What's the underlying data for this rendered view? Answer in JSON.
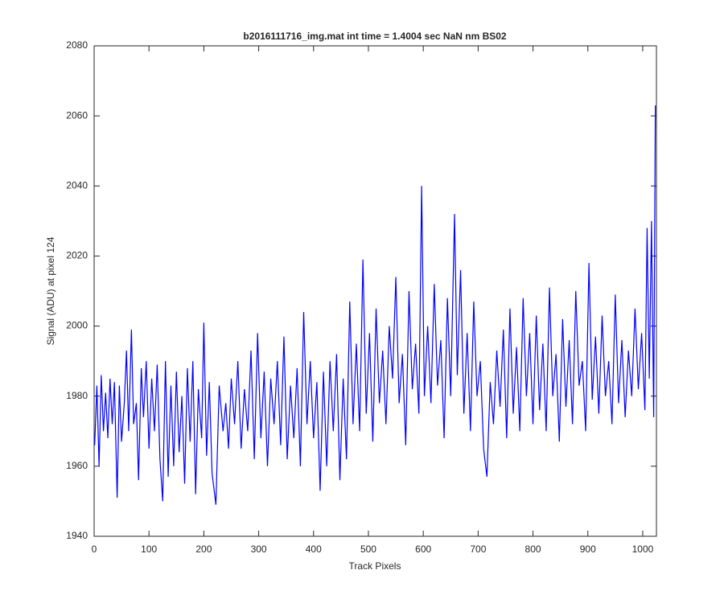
{
  "chart_data": {
    "type": "line",
    "title": "b2016111716_img.mat int time = 1.4004 sec  NaN nm BS02",
    "x_label": "Track Pixels",
    "y_label": "Signal (ADU) at pixel 124",
    "color": "#0000ff",
    "xlim": [
      0,
      1025
    ],
    "xticks": [
      0,
      100,
      200,
      300,
      400,
      500,
      600,
      700,
      800,
      900,
      1000
    ],
    "ylim": [
      1940,
      2080
    ],
    "yticks": [
      1940,
      1960,
      1980,
      2000,
      2020,
      2040,
      2060,
      2080
    ],
    "x": [
      1,
      5,
      9,
      13,
      17,
      21,
      25,
      29,
      33,
      37,
      42,
      46,
      50,
      55,
      59,
      63,
      68,
      72,
      77,
      81,
      86,
      90,
      95,
      100,
      105,
      110,
      115,
      120,
      125,
      130,
      135,
      140,
      145,
      150,
      155,
      160,
      165,
      170,
      175,
      180,
      185,
      190,
      196,
      200,
      205,
      210,
      215,
      222,
      228,
      235,
      240,
      245,
      250,
      256,
      262,
      268,
      274,
      280,
      286,
      292,
      298,
      304,
      310,
      316,
      322,
      328,
      334,
      340,
      346,
      352,
      358,
      364,
      370,
      376,
      382,
      388,
      394,
      400,
      406,
      412,
      418,
      424,
      430,
      436,
      442,
      448,
      454,
      460,
      466,
      472,
      478,
      484,
      490,
      496,
      502,
      508,
      514,
      520,
      526,
      532,
      538,
      544,
      550,
      556,
      562,
      568,
      574,
      580,
      586,
      592,
      597,
      602,
      608,
      614,
      620,
      626,
      632,
      638,
      644,
      650,
      657,
      662,
      668,
      674,
      680,
      686,
      692,
      698,
      704,
      710,
      716,
      722,
      728,
      734,
      740,
      746,
      752,
      758,
      764,
      770,
      776,
      782,
      788,
      794,
      800,
      806,
      812,
      818,
      824,
      830,
      836,
      842,
      848,
      854,
      860,
      866,
      872,
      878,
      884,
      890,
      896,
      902,
      908,
      914,
      920,
      926,
      932,
      938,
      944,
      950,
      956,
      962,
      968,
      974,
      980,
      986,
      992,
      998,
      1004,
      1008,
      1012,
      1016,
      1020,
      1023
    ],
    "values": [
      1966,
      1983,
      1960,
      1986,
      1970,
      1981,
      1968,
      1985,
      1972,
      1984,
      1951,
      1983,
      1967,
      1978,
      1993,
      1970,
      1999,
      1972,
      1978,
      1956,
      1988,
      1974,
      1990,
      1965,
      1985,
      1970,
      1989,
      1962,
      1950,
      1990,
      1957,
      1983,
      1960,
      1987,
      1964,
      1980,
      1955,
      1988,
      1967,
      1990,
      1952,
      1982,
      1968,
      2001,
      1963,
      1984,
      1958,
      1949,
      1983,
      1970,
      1978,
      1965,
      1985,
      1972,
      1990,
      1965,
      1982,
      1970,
      1993,
      1962,
      1998,
      1968,
      1987,
      1960,
      1985,
      1972,
      1990,
      1966,
      1997,
      1962,
      1983,
      1968,
      1988,
      1960,
      2004,
      1972,
      1990,
      1968,
      1984,
      1953,
      1987,
      1960,
      1990,
      1970,
      1992,
      1956,
      1985,
      1962,
      2007,
      1972,
      1995,
      1970,
      2019,
      1975,
      1998,
      1967,
      2005,
      1978,
      1993,
      1972,
      2000,
      1985,
      2014,
      1978,
      1992,
      1966,
      2010,
      1982,
      1995,
      1975,
      2040,
      1980,
      2000,
      1978,
      2012,
      1983,
      1996,
      1968,
      2008,
      1980,
      2032,
      1986,
      2016,
      1975,
      1998,
      1970,
      2007,
      1980,
      1990,
      1965,
      1957,
      1984,
      1972,
      1993,
      1977,
      1999,
      1968,
      2005,
      1975,
      1994,
      1970,
      2008,
      1980,
      1998,
      1972,
      2003,
      1976,
      1995,
      1970,
      2011,
      1980,
      1992,
      1967,
      2002,
      1977,
      1996,
      1972,
      2010,
      1983,
      1990,
      1970,
      2018,
      1979,
      1997,
      1975,
      2003,
      1980,
      1990,
      1972,
      2009,
      1978,
      1996,
      1974,
      1993,
      1980,
      2005,
      1982,
      1998,
      1976,
      2028,
      1985,
      2030,
      1974,
      2063
    ]
  }
}
